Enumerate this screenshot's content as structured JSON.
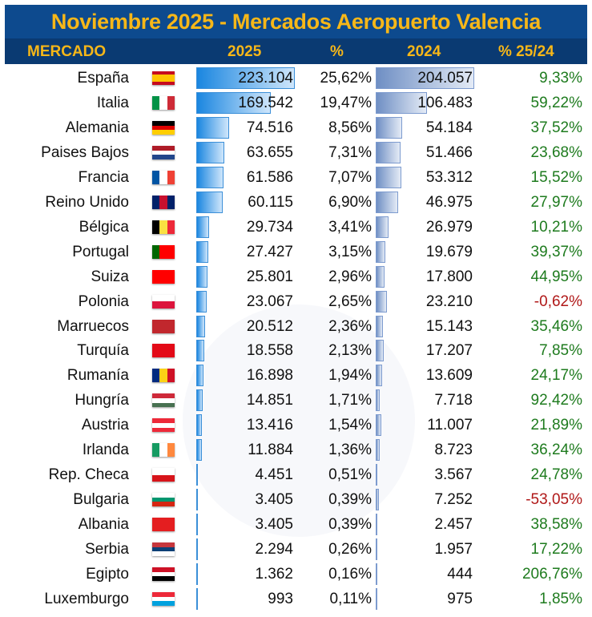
{
  "title": "Noviembre 2025 - Mercados Aeropuerto Valencia",
  "chart_data": {
    "type": "table",
    "title": "Noviembre 2025 - Mercados Aeropuerto Valencia",
    "columns": [
      "MERCADO",
      "2025",
      "%",
      "2024",
      "% 25/24"
    ],
    "colors": {
      "positive": "#1e7b1e",
      "negative": "#b01818",
      "bar_2025": "#1a86e0",
      "bar_2024": "#6f8fc4",
      "header_text": "#f7b718",
      "header_bg": "#0d4a8e"
    },
    "rows": [
      {
        "mercado": "España",
        "v2025": 223104,
        "v2025_label": "223.104",
        "share": "25,62%",
        "v2024": 204057,
        "v2024_label": "204.057",
        "growth": "9,33%",
        "flag": {
          "dir": "col",
          "colors": [
            "#c60b1e",
            "#ffc400",
            "#ffc400",
            "#c60b1e"
          ]
        }
      },
      {
        "mercado": "Italia",
        "v2025": 169542,
        "v2025_label": "169.542",
        "share": "19,47%",
        "v2024": 106483,
        "v2024_label": "106.483",
        "growth": "59,22%",
        "flag": {
          "dir": "row",
          "colors": [
            "#009246",
            "#ffffff",
            "#ce2b37"
          ]
        }
      },
      {
        "mercado": "Alemania",
        "v2025": 74516,
        "v2025_label": "74.516",
        "share": "8,56%",
        "v2024": 54184,
        "v2024_label": "54.184",
        "growth": "37,52%",
        "flag": {
          "dir": "col",
          "colors": [
            "#000000",
            "#dd0000",
            "#ffce00"
          ]
        }
      },
      {
        "mercado": "Paises Bajos",
        "v2025": 63655,
        "v2025_label": "63.655",
        "share": "7,31%",
        "v2024": 51466,
        "v2024_label": "51.466",
        "growth": "23,68%",
        "flag": {
          "dir": "col",
          "colors": [
            "#ae1c28",
            "#ffffff",
            "#21468b"
          ]
        }
      },
      {
        "mercado": "Francia",
        "v2025": 61586,
        "v2025_label": "61.586",
        "share": "7,07%",
        "v2024": 53312,
        "v2024_label": "53.312",
        "growth": "15,52%",
        "flag": {
          "dir": "row",
          "colors": [
            "#0055a4",
            "#ffffff",
            "#ef4135"
          ]
        }
      },
      {
        "mercado": "Reino Unido",
        "v2025": 60115,
        "v2025_label": "60.115",
        "share": "6,90%",
        "v2024": 46975,
        "v2024_label": "46.975",
        "growth": "27,97%",
        "flag": {
          "dir": "row",
          "colors": [
            "#012169",
            "#c8102e",
            "#012169"
          ]
        }
      },
      {
        "mercado": "Bélgica",
        "v2025": 29734,
        "v2025_label": "29.734",
        "share": "3,41%",
        "v2024": 26979,
        "v2024_label": "26.979",
        "growth": "10,21%",
        "flag": {
          "dir": "row",
          "colors": [
            "#000000",
            "#fae042",
            "#ed2939"
          ]
        }
      },
      {
        "mercado": "Portugal",
        "v2025": 27427,
        "v2025_label": "27.427",
        "share": "3,15%",
        "v2024": 19679,
        "v2024_label": "19.679",
        "growth": "39,37%",
        "flag": {
          "dir": "row",
          "colors": [
            "#006600",
            "#ff0000",
            "#ff0000"
          ]
        }
      },
      {
        "mercado": "Suiza",
        "v2025": 25801,
        "v2025_label": "25.801",
        "share": "2,96%",
        "v2024": 17800,
        "v2024_label": "17.800",
        "growth": "44,95%",
        "flag": {
          "dir": "row",
          "colors": [
            "#ff0000"
          ]
        }
      },
      {
        "mercado": "Polonia",
        "v2025": 23067,
        "v2025_label": "23.067",
        "share": "2,65%",
        "v2024": 23210,
        "v2024_label": "23.210",
        "growth": "-0,62%",
        "flag": {
          "dir": "col",
          "colors": [
            "#ffffff",
            "#dc143c"
          ]
        }
      },
      {
        "mercado": "Marruecos",
        "v2025": 20512,
        "v2025_label": "20.512",
        "share": "2,36%",
        "v2024": 15143,
        "v2024_label": "15.143",
        "growth": "35,46%",
        "flag": {
          "dir": "row",
          "colors": [
            "#c1272d"
          ]
        }
      },
      {
        "mercado": "Turquía",
        "v2025": 18558,
        "v2025_label": "18.558",
        "share": "2,13%",
        "v2024": 17207,
        "v2024_label": "17.207",
        "growth": "7,85%",
        "flag": {
          "dir": "row",
          "colors": [
            "#e30a17"
          ]
        }
      },
      {
        "mercado": "Rumanía",
        "v2025": 16898,
        "v2025_label": "16.898",
        "share": "1,94%",
        "v2024": 13609,
        "v2024_label": "13.609",
        "growth": "24,17%",
        "flag": {
          "dir": "row",
          "colors": [
            "#002b7f",
            "#fcd116",
            "#ce1126"
          ]
        }
      },
      {
        "mercado": "Hungría",
        "v2025": 14851,
        "v2025_label": "14.851",
        "share": "1,71%",
        "v2024": 7718,
        "v2024_label": "7.718",
        "growth": "92,42%",
        "flag": {
          "dir": "col",
          "colors": [
            "#ce2939",
            "#ffffff",
            "#477050"
          ]
        }
      },
      {
        "mercado": "Austria",
        "v2025": 13416,
        "v2025_label": "13.416",
        "share": "1,54%",
        "v2024": 11007,
        "v2024_label": "11.007",
        "growth": "21,89%",
        "flag": {
          "dir": "col",
          "colors": [
            "#ed2939",
            "#ffffff",
            "#ed2939"
          ]
        }
      },
      {
        "mercado": "Irlanda",
        "v2025": 11884,
        "v2025_label": "11.884",
        "share": "1,36%",
        "v2024": 8723,
        "v2024_label": "8.723",
        "growth": "36,24%",
        "flag": {
          "dir": "row",
          "colors": [
            "#169b62",
            "#ffffff",
            "#ff883e"
          ]
        }
      },
      {
        "mercado": "Rep. Checa",
        "v2025": 4451,
        "v2025_label": "4.451",
        "share": "0,51%",
        "v2024": 3567,
        "v2024_label": "3.567",
        "growth": "24,78%",
        "flag": {
          "dir": "col",
          "colors": [
            "#ffffff",
            "#d7141a"
          ]
        }
      },
      {
        "mercado": "Bulgaria",
        "v2025": 3405,
        "v2025_label": "3.405",
        "share": "0,39%",
        "v2024": 7252,
        "v2024_label": "7.252",
        "growth": "-53,05%",
        "flag": {
          "dir": "col",
          "colors": [
            "#ffffff",
            "#00966e",
            "#d62612"
          ]
        }
      },
      {
        "mercado": "Albania",
        "v2025": 3405,
        "v2025_label": "3.405",
        "share": "0,39%",
        "v2024": 2457,
        "v2024_label": "2.457",
        "growth": "38,58%",
        "flag": {
          "dir": "row",
          "colors": [
            "#e41e20"
          ]
        }
      },
      {
        "mercado": "Serbia",
        "v2025": 2294,
        "v2025_label": "2.294",
        "share": "0,26%",
        "v2024": 1957,
        "v2024_label": "1.957",
        "growth": "17,22%",
        "flag": {
          "dir": "col",
          "colors": [
            "#c6363c",
            "#0c4076",
            "#ffffff"
          ]
        }
      },
      {
        "mercado": "Egipto",
        "v2025": 1362,
        "v2025_label": "1.362",
        "share": "0,16%",
        "v2024": 444,
        "v2024_label": "444",
        "growth": "206,76%",
        "flag": {
          "dir": "col",
          "colors": [
            "#ce1126",
            "#ffffff",
            "#000000"
          ]
        }
      },
      {
        "mercado": "Luxemburgo",
        "v2025": 993,
        "v2025_label": "993",
        "share": "0,11%",
        "v2024": 975,
        "v2024_label": "975",
        "growth": "1,85%",
        "flag": {
          "dir": "col",
          "colors": [
            "#ed2939",
            "#ffffff",
            "#00a1de"
          ]
        }
      }
    ]
  }
}
